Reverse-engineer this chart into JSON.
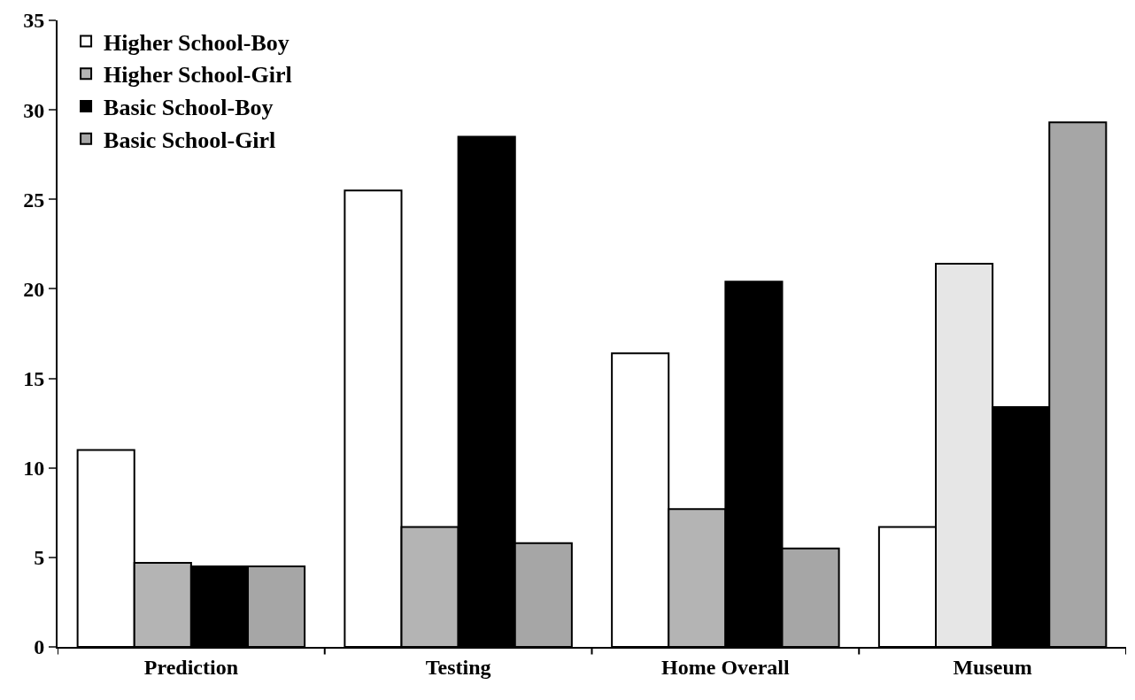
{
  "chart_data": {
    "type": "bar",
    "categories": [
      "Prediction",
      "Testing",
      "Home Overall",
      "Museum"
    ],
    "series": [
      {
        "name": "Higher School-Boy",
        "color": "#ffffff",
        "values": [
          11.0,
          25.5,
          16.4,
          6.7
        ]
      },
      {
        "name": "Higher School-Girl",
        "color": "#b4b4b4",
        "colors": [
          "#b4b4b4",
          "#b4b4b4",
          "#b4b4b4",
          "#e6e6e6"
        ],
        "values": [
          4.7,
          6.7,
          7.7,
          21.4
        ]
      },
      {
        "name": "Basic School-Boy",
        "color": "#000000",
        "values": [
          4.5,
          28.5,
          20.4,
          13.4
        ]
      },
      {
        "name": "Basic School-Girl",
        "color": "#a6a6a6",
        "values": [
          4.5,
          5.8,
          5.5,
          29.3
        ]
      }
    ],
    "ylim": [
      0,
      35
    ],
    "yticks": [
      0,
      5,
      10,
      15,
      20,
      25,
      30,
      35
    ],
    "legend": "top left"
  }
}
